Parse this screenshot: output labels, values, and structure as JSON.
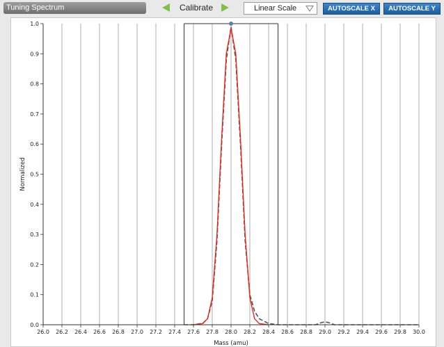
{
  "toolbar": {
    "title": "Tuning Spectrum",
    "calibrate_label": "Calibrate",
    "scale_select": "Linear Scale",
    "autoscale_x_label": "AUTOSCALE X",
    "autoscale_y_label": "AUTOSCALE Y",
    "arrow_color": "#7dc242",
    "button_color": "#2f75b8"
  },
  "chart_data": {
    "type": "line",
    "xlabel": "Mass (amu)",
    "ylabel": "Normalized",
    "xlim": [
      26.0,
      30.0
    ],
    "ylim": [
      0.0,
      1.0
    ],
    "grid": true,
    "x_ticks": [
      "26.0",
      "26.2",
      "26.4",
      "26.6",
      "26.8",
      "27.0",
      "27.2",
      "27.4",
      "27.6",
      "27.8",
      "28.0",
      "28.2",
      "28.4",
      "28.6",
      "28.8",
      "29.0",
      "29.2",
      "29.4",
      "29.6",
      "29.8",
      "30.0"
    ],
    "y_ticks": [
      "0.0",
      "0.1",
      "0.2",
      "0.3",
      "0.4",
      "0.5",
      "0.6",
      "0.7",
      "0.8",
      "0.9",
      "1.0"
    ],
    "window_markers": [
      27.5,
      28.5
    ],
    "peak_marker": {
      "x": 28.0,
      "y": 1.0,
      "color": "#5b7fb5"
    },
    "series": [
      {
        "color": "#555555",
        "style": "dashed",
        "x": [
          27.5,
          27.6,
          27.7,
          27.75,
          27.8,
          27.85,
          27.9,
          27.95,
          28.0,
          28.05,
          28.1,
          28.15,
          28.2,
          28.25,
          28.3,
          28.4,
          28.5,
          28.9,
          28.95,
          29.0,
          29.05,
          29.1,
          29.2,
          30.0
        ],
        "y": [
          0.0,
          0.0,
          0.005,
          0.02,
          0.08,
          0.28,
          0.6,
          0.88,
          0.99,
          0.88,
          0.6,
          0.28,
          0.1,
          0.045,
          0.02,
          0.004,
          0.0,
          0.0,
          0.006,
          0.01,
          0.006,
          0.0,
          0.0,
          0.0
        ]
      },
      {
        "color": "#e8281e",
        "style": "solid",
        "x": [
          27.6,
          27.7,
          27.75,
          27.8,
          27.85,
          27.9,
          27.95,
          28.0,
          28.05,
          28.1,
          28.15,
          28.2,
          28.25,
          28.3,
          28.4
        ],
        "y": [
          0.0,
          0.004,
          0.02,
          0.09,
          0.3,
          0.62,
          0.9,
          0.985,
          0.9,
          0.62,
          0.3,
          0.09,
          0.02,
          0.004,
          0.0
        ]
      }
    ]
  }
}
